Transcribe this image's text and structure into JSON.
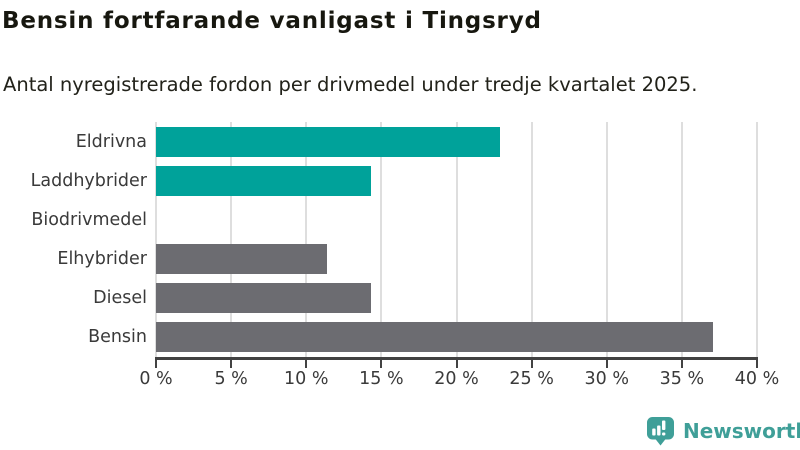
{
  "header": {
    "title": "Bensin fortfarande vanligast i Tingsryd",
    "subtitle": "Antal nyregistrerade fordon per drivmedel under tredje kvartalet 2025."
  },
  "chart_data": {
    "type": "bar",
    "orientation": "horizontal",
    "title": "Bensin fortfarande vanligast i Tingsryd",
    "subtitle": "Antal nyregistrerade fordon per drivmedel under tredje kvartalet 2025.",
    "categories": [
      "Eldrivna",
      "Laddhybrider",
      "Biodrivmedel",
      "Elhybrider",
      "Diesel",
      "Bensin"
    ],
    "values": [
      22.9,
      14.3,
      0,
      11.4,
      14.3,
      37.1
    ],
    "bar_colors": [
      "#00a29a",
      "#00a29a",
      "#6c6c71",
      "#6c6c71",
      "#6c6c71",
      "#6c6c71"
    ],
    "unit": "%",
    "xlabel": "",
    "ylabel": "",
    "xlim": [
      0,
      40
    ],
    "xticks": [
      0,
      5,
      10,
      15,
      20,
      25,
      30,
      35,
      40
    ],
    "xtick_suffix": " %",
    "grid": "vertical",
    "legend": "none"
  },
  "colors": {
    "accent_teal": "#00a29a",
    "neutral_gray": "#6c6c71",
    "gridline": "#dedede",
    "axis": "#424242",
    "text_dark": "#17170f",
    "text_label": "#3a3a3a",
    "brand_teal": "#3f9f98"
  },
  "footer": {
    "brand": "Newsworthy"
  }
}
